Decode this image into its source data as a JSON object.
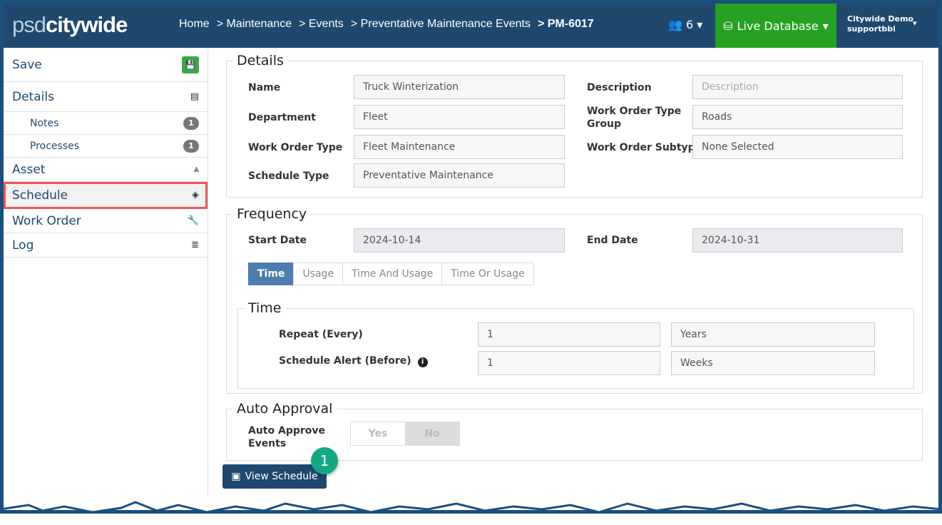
{
  "header": {
    "logo_light": "psd",
    "logo_bold": "citywide",
    "breadcrumb": [
      "Home",
      "> Maintenance",
      "> Events",
      "> Preventative Maintenance Events",
      "> PM-6017"
    ],
    "users_count": "6",
    "database": "Live Database",
    "account_name": "Citywide Demo",
    "account_user": "supportbbi"
  },
  "sidebar": {
    "save": "Save",
    "items": [
      {
        "label": "Details"
      },
      {
        "label": "Notes",
        "count": "1"
      },
      {
        "label": "Processes",
        "count": "1"
      },
      {
        "label": "Asset"
      },
      {
        "label": "Schedule"
      },
      {
        "label": "Work Order"
      },
      {
        "label": "Log"
      }
    ]
  },
  "details": {
    "legend": "Details",
    "name_label": "Name",
    "name": "Truck Winterization",
    "description_label": "Description",
    "description_placeholder": "Description",
    "department_label": "Department",
    "department": "Fleet",
    "wot_group_label": "Work Order Type Group",
    "wot_group": "Roads",
    "wot_label": "Work Order Type",
    "wot": "Fleet Maintenance",
    "wost_label": "Work Order Subtype",
    "wost": "None Selected",
    "schedule_type_label": "Schedule Type",
    "schedule_type": "Preventative Maintenance"
  },
  "frequency": {
    "legend": "Frequency",
    "start_label": "Start Date",
    "start": "2024-10-14",
    "end_label": "End Date",
    "end": "2024-10-31",
    "tabs": [
      "Time",
      "Usage",
      "Time And Usage",
      "Time Or Usage"
    ],
    "active_tab": "Time",
    "time": {
      "legend": "Time",
      "repeat_label": "Repeat (Every)",
      "repeat_value": "1",
      "repeat_unit": "Years",
      "alert_label": "Schedule Alert (Before)",
      "alert_value": "1",
      "alert_unit": "Weeks"
    }
  },
  "auto_approval": {
    "legend": "Auto Approval",
    "label": "Auto Approve Events",
    "yes": "Yes",
    "no": "No",
    "selected": "No"
  },
  "view_schedule": "View Schedule",
  "callout": "1",
  "colors": {
    "header": "#1f486f",
    "live": "#27a123",
    "callout": "#14a886",
    "highlight": "#e55555"
  }
}
